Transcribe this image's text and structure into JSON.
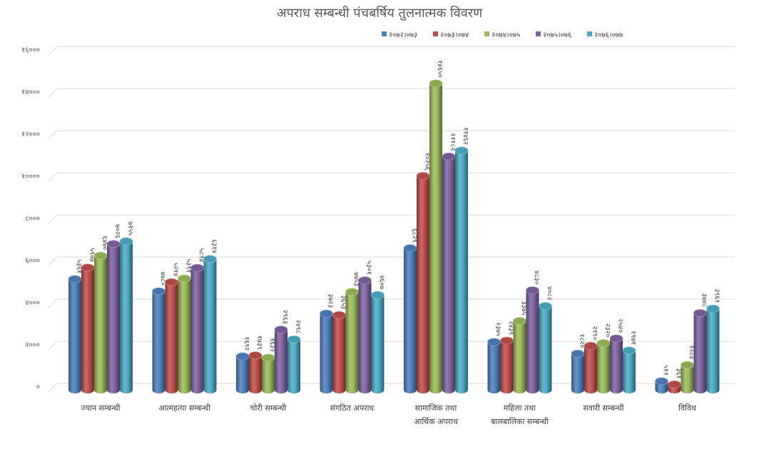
{
  "chart_data": {
    "type": "bar",
    "style": "3d-cylinder",
    "title": "अपराध सम्बन्धी पंचबर्षिय तुलनात्मक विवरण",
    "xlabel": "",
    "ylabel": "",
    "ylim": [
      0,
      16000
    ],
    "grid": true,
    "legend_position": "top-right",
    "yticks": [
      0,
      2000,
      4000,
      6000,
      8000,
      10000,
      12000,
      14000,
      16000
    ],
    "ytick_labels": [
      "०",
      "२०००",
      "४०००",
      "६०००",
      "८०००",
      "१००००",
      "१२०००",
      "१४०००",
      "१६०००"
    ],
    "categories": [
      [
        "ज्यान सम्बन्धी"
      ],
      [
        "आत्महत्या सम्बन्धी"
      ],
      [
        "चोरी सम्बन्धी"
      ],
      [
        "संगठित अपराध"
      ],
      [
        "सामाजिक तथा",
        "आर्थिक अपराध"
      ],
      [
        "महिला तथा",
        "बालबालिका सम्बन्धी"
      ],
      [
        "सवारी सम्बन्धी"
      ],
      [
        "विविध"
      ]
    ],
    "series": [
      {
        "name": "२०७२।०७३",
        "color": "#4f81bd",
        "values": [
          5361,
          4780,
          1692,
          3723,
          6829,
          2375,
          1820,
          511
        ],
        "labels": [
          "५३६१",
          "४७८०",
          "१६९२",
          "३७२३",
          "६८२९",
          "२३७५",
          "१८२०",
          "५११"
        ]
      },
      {
        "name": "२०७३।०७४",
        "color": "#c0504d",
        "values": [
          5907,
          5214,
          1739,
          3653,
          10256,
          2439,
          2190,
          361
        ],
        "labels": [
          "५९०७",
          "५२१४",
          "१७३९",
          "३६५३",
          "१०२५६",
          "२४३९",
          "२१९०",
          "३६१"
        ]
      },
      {
        "name": "२०७४।०७५",
        "color": "#9bbb59",
        "values": [
          6470,
          5391,
          1632,
          4753,
          14650,
          3375,
          2320,
          1284
        ],
        "labels": [
          "६४७०",
          "५३९१",
          "१६३२",
          "४७५३",
          "१४६५०",
          "३३७५",
          "२३२०",
          "१२८४"
        ]
      },
      {
        "name": "२०७५।०७६",
        "color": "#8064a2",
        "values": [
          7026,
          5894,
          2963,
          5301,
          11182,
          4830,
          2540,
          3748
        ],
        "labels": [
          "७०२६",
          "५८९४",
          "२९६३",
          "५३०१",
          "१११८२",
          "४८३०",
          "२५४०",
          "३७४८"
        ]
      },
      {
        "name": "२०७६।०७७",
        "color": "#4bacc6",
        "values": [
          7155,
          6314,
          2498,
          4607,
          11462,
          4082,
          1971,
          3961
        ],
        "labels": [
          "७१५५",
          "६३१४",
          "२४९८",
          "४६०७",
          "११४६२",
          "४०८२",
          "१९७१",
          "३९६१"
        ]
      }
    ]
  }
}
